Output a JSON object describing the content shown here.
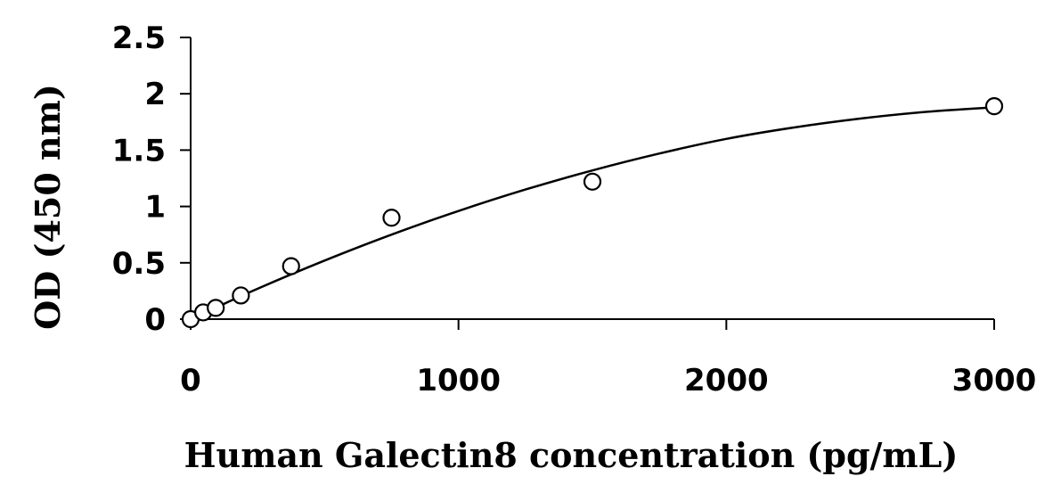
{
  "chart_data": {
    "type": "scatter",
    "title": "",
    "xlabel": "Human Galectin8 concentration (pg/mL)",
    "ylabel": "OD (450 nm)",
    "xlim": [
      0,
      3000
    ],
    "ylim": [
      0,
      2.5
    ],
    "x_ticks": [
      0,
      1000,
      2000,
      3000
    ],
    "x_tick_labels": [
      "0",
      "1000",
      "2000",
      "3000"
    ],
    "y_ticks": [
      0,
      0.5,
      1,
      1.5,
      2,
      2.5
    ],
    "y_tick_labels": [
      "0",
      "0.5",
      "1",
      "1.5",
      "2",
      "2.5"
    ],
    "grid": false,
    "legend": "none",
    "marker": "open-circle",
    "series": [
      {
        "points": [
          {
            "x": 0,
            "y": 0.0
          },
          {
            "x": 46.875,
            "y": 0.06
          },
          {
            "x": 93.75,
            "y": 0.1
          },
          {
            "x": 187.5,
            "y": 0.21
          },
          {
            "x": 375,
            "y": 0.47
          },
          {
            "x": 750,
            "y": 0.9
          },
          {
            "x": 1500,
            "y": 1.22
          },
          {
            "x": 3000,
            "y": 1.89
          }
        ]
      }
    ],
    "fit_curve": {
      "type": "smooth",
      "points": [
        {
          "x": 0,
          "y": 0.0
        },
        {
          "x": 250,
          "y": 0.27
        },
        {
          "x": 500,
          "y": 0.52
        },
        {
          "x": 750,
          "y": 0.75
        },
        {
          "x": 1000,
          "y": 0.96
        },
        {
          "x": 1250,
          "y": 1.15
        },
        {
          "x": 1500,
          "y": 1.32
        },
        {
          "x": 1750,
          "y": 1.47
        },
        {
          "x": 2000,
          "y": 1.6
        },
        {
          "x": 2250,
          "y": 1.7
        },
        {
          "x": 2500,
          "y": 1.78
        },
        {
          "x": 2750,
          "y": 1.84
        },
        {
          "x": 3000,
          "y": 1.88
        }
      ]
    }
  }
}
